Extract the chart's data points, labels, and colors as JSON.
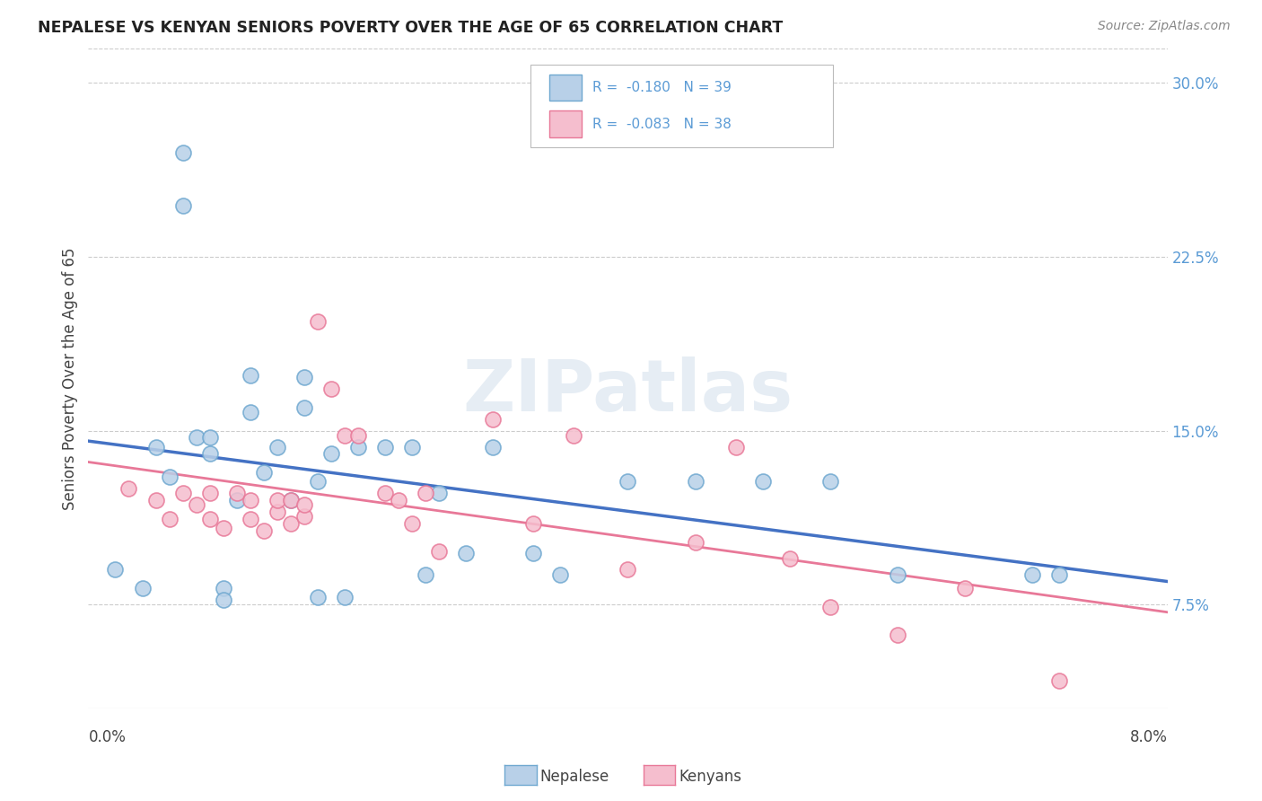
{
  "title": "NEPALESE VS KENYAN SENIORS POVERTY OVER THE AGE OF 65 CORRELATION CHART",
  "source": "Source: ZipAtlas.com",
  "ylabel": "Seniors Poverty Over the Age of 65",
  "xmin": 0.0,
  "xmax": 0.08,
  "ymin": 0.03,
  "ymax": 0.315,
  "ytick_vals": [
    0.075,
    0.15,
    0.225,
    0.3
  ],
  "ytick_labels": [
    "7.5%",
    "15.0%",
    "22.5%",
    "30.0%"
  ],
  "watermark": "ZIPatlas",
  "nepalese_fill": "#b8d0e8",
  "nepalese_edge": "#6fa8d0",
  "kenyan_fill": "#f5bece",
  "kenyan_edge": "#e87898",
  "nepalese_line_color": "#4472c4",
  "kenyan_line_color": "#e87898",
  "background_color": "#ffffff",
  "grid_color": "#cccccc",
  "nepalese_x": [
    0.002,
    0.004,
    0.005,
    0.006,
    0.007,
    0.007,
    0.008,
    0.009,
    0.009,
    0.01,
    0.01,
    0.011,
    0.012,
    0.012,
    0.013,
    0.014,
    0.015,
    0.016,
    0.016,
    0.017,
    0.017,
    0.018,
    0.019,
    0.02,
    0.022,
    0.024,
    0.025,
    0.026,
    0.028,
    0.03,
    0.033,
    0.035,
    0.04,
    0.045,
    0.05,
    0.055,
    0.06,
    0.07,
    0.072
  ],
  "nepalese_y": [
    0.09,
    0.082,
    0.143,
    0.13,
    0.27,
    0.247,
    0.147,
    0.147,
    0.14,
    0.082,
    0.077,
    0.12,
    0.174,
    0.158,
    0.132,
    0.143,
    0.12,
    0.173,
    0.16,
    0.128,
    0.078,
    0.14,
    0.078,
    0.143,
    0.143,
    0.143,
    0.088,
    0.123,
    0.097,
    0.143,
    0.097,
    0.088,
    0.128,
    0.128,
    0.128,
    0.128,
    0.088,
    0.088,
    0.088
  ],
  "kenyan_x": [
    0.003,
    0.005,
    0.006,
    0.007,
    0.008,
    0.009,
    0.009,
    0.01,
    0.011,
    0.012,
    0.012,
    0.013,
    0.014,
    0.014,
    0.015,
    0.015,
    0.016,
    0.016,
    0.017,
    0.018,
    0.019,
    0.02,
    0.022,
    0.023,
    0.024,
    0.025,
    0.026,
    0.03,
    0.033,
    0.036,
    0.04,
    0.045,
    0.048,
    0.052,
    0.055,
    0.06,
    0.065,
    0.072
  ],
  "kenyan_y": [
    0.125,
    0.12,
    0.112,
    0.123,
    0.118,
    0.123,
    0.112,
    0.108,
    0.123,
    0.12,
    0.112,
    0.107,
    0.115,
    0.12,
    0.12,
    0.11,
    0.113,
    0.118,
    0.197,
    0.168,
    0.148,
    0.148,
    0.123,
    0.12,
    0.11,
    0.123,
    0.098,
    0.155,
    0.11,
    0.148,
    0.09,
    0.102,
    0.143,
    0.095,
    0.074,
    0.062,
    0.082,
    0.042
  ]
}
